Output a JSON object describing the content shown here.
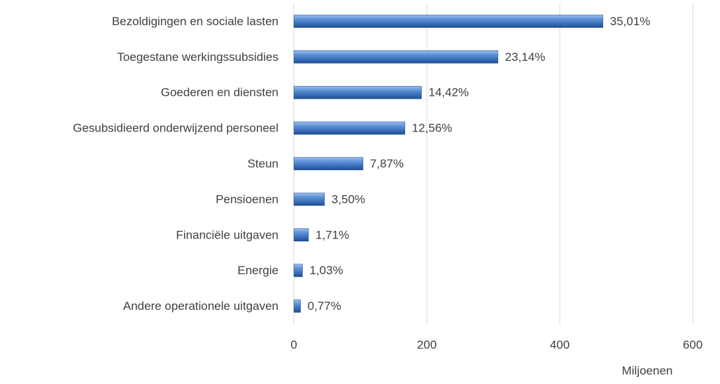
{
  "chart_data": {
    "type": "bar",
    "orientation": "horizontal",
    "categories": [
      "Bezoldigingen en sociale lasten",
      "Toegestane werkingssubsidies",
      "Goederen en diensten",
      "Gesubsidieerd onderwijzend personeel",
      "Steun",
      "Pensioenen",
      "Financiële uitgaven",
      "Energie",
      "Andere operationele uitgaven"
    ],
    "values": [
      465,
      307,
      192,
      167,
      104,
      46,
      22,
      13,
      10
    ],
    "value_labels": [
      "35,01%",
      "23,14%",
      "14,42%",
      "12,56%",
      "7,87%",
      "3,50%",
      "1,71%",
      "1,03%",
      "0,77%"
    ],
    "color": "#4a7cc4",
    "xlim": [
      0,
      600
    ],
    "xticks": [
      0,
      200,
      400,
      600
    ],
    "xlabel": "Miljoenen",
    "grid": true
  }
}
